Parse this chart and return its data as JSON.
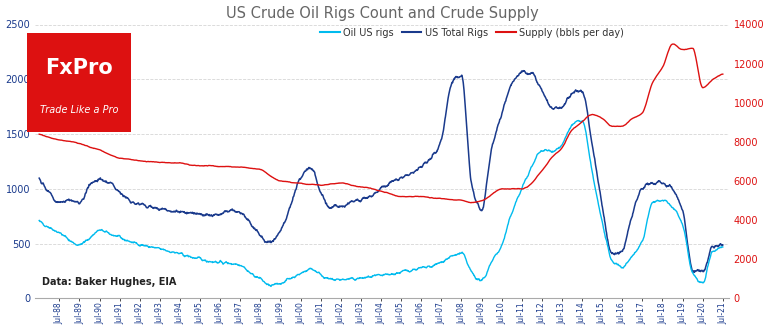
{
  "title": "US Crude Oil Rigs Count and Crude Supply",
  "title_color": "#666666",
  "left_ylim": [
    0,
    2500
  ],
  "right_ylim": [
    0,
    14000
  ],
  "left_yticks": [
    0,
    500,
    1000,
    1500,
    2000,
    2500
  ],
  "right_yticks": [
    0,
    2000,
    4000,
    6000,
    8000,
    10000,
    12000,
    14000
  ],
  "grid_color": "#cccccc",
  "bg_color": "#ffffff",
  "oil_us_rigs_color": "#00bbee",
  "total_rigs_color": "#1a3a8c",
  "supply_color": "#dd1111",
  "legend_labels": [
    "Oil US rigs",
    "US Total Rigs",
    "Supply (bbls per day)"
  ],
  "source_text": "Data: Baker Hughes, EIA",
  "fxpro_bg": "#dd1111",
  "fxpro_text": "FxPro",
  "fxpro_sub": "Trade Like a Pro",
  "xtick_color": "#1a3a8c",
  "ytick_left_color": "#1a3a8c",
  "ytick_right_color": "#dd1111"
}
